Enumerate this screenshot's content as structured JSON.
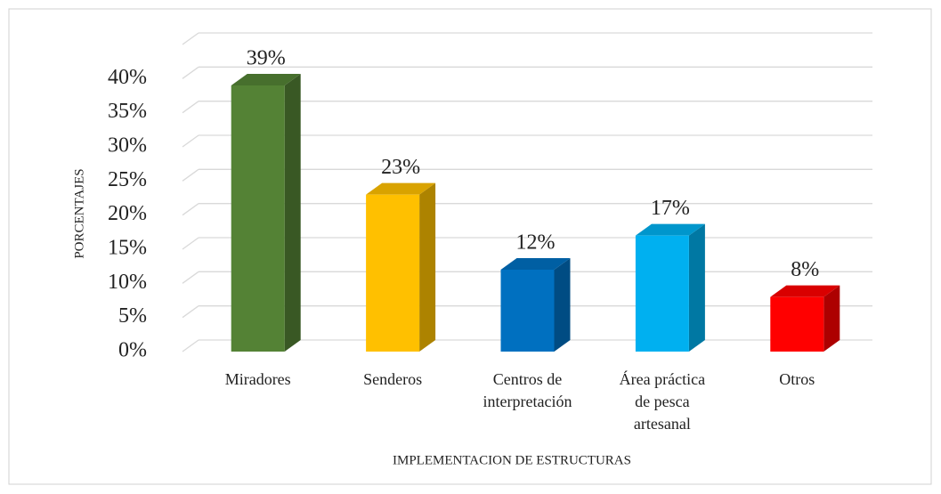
{
  "chart_data": {
    "type": "bar3d",
    "categories": [
      "Miradores",
      "Senderos",
      "Centros de interpretación",
      "Área práctica de pesca artesanal",
      "Otros"
    ],
    "values": [
      39,
      23,
      12,
      17,
      8
    ],
    "value_labels": [
      "39%",
      "23%",
      "12%",
      "17%",
      "8%"
    ],
    "colors": [
      "#548235",
      "#ffc000",
      "#0070c0",
      "#00b0f0",
      "#ff0000"
    ],
    "ylim": [
      0,
      45
    ],
    "yticks": [
      {
        "value": 0,
        "label": "0%"
      },
      {
        "value": 5,
        "label": "5%"
      },
      {
        "value": 10,
        "label": "10%"
      },
      {
        "value": 15,
        "label": "15%"
      },
      {
        "value": 20,
        "label": "20%"
      },
      {
        "value": 25,
        "label": "25%"
      },
      {
        "value": 30,
        "label": "30%"
      },
      {
        "value": 35,
        "label": "35%"
      },
      {
        "value": 40,
        "label": "40%"
      }
    ],
    "grid": true,
    "ylabel": "PORCENTAJES",
    "xlabel": "IMPLEMENTACION DE ESTRUCTURAS"
  }
}
